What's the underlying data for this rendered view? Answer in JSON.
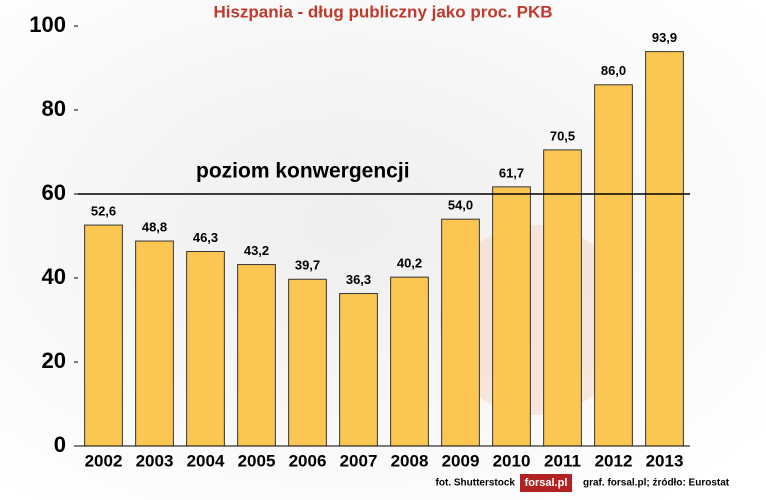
{
  "chart_data": {
    "type": "bar",
    "title": "Hiszpania - dług publiczny jako proc. PKB",
    "categories": [
      "2002",
      "2003",
      "2004",
      "2005",
      "2006",
      "2007",
      "2008",
      "2009",
      "2010",
      "2011",
      "2012",
      "2013"
    ],
    "values": [
      52.6,
      48.8,
      46.3,
      43.2,
      39.7,
      36.3,
      40.2,
      54.0,
      61.7,
      70.5,
      86.0,
      93.9
    ],
    "value_labels": [
      "52,6",
      "48,8",
      "46,3",
      "43,2",
      "39,7",
      "36,3",
      "40,2",
      "54,0",
      "61,7",
      "70,5",
      "86,0",
      "93,9"
    ],
    "color": "#fcc652",
    "ylim": [
      0,
      100
    ],
    "yticks": [
      0,
      20,
      40,
      60,
      80,
      100
    ],
    "reference_line": {
      "value": 60,
      "label": "poziom konwergencji"
    },
    "credits": [
      "fot. Shutterstock",
      "forsal.pl",
      "graf. forsal.pl;  źródło: Eurostat"
    ]
  }
}
